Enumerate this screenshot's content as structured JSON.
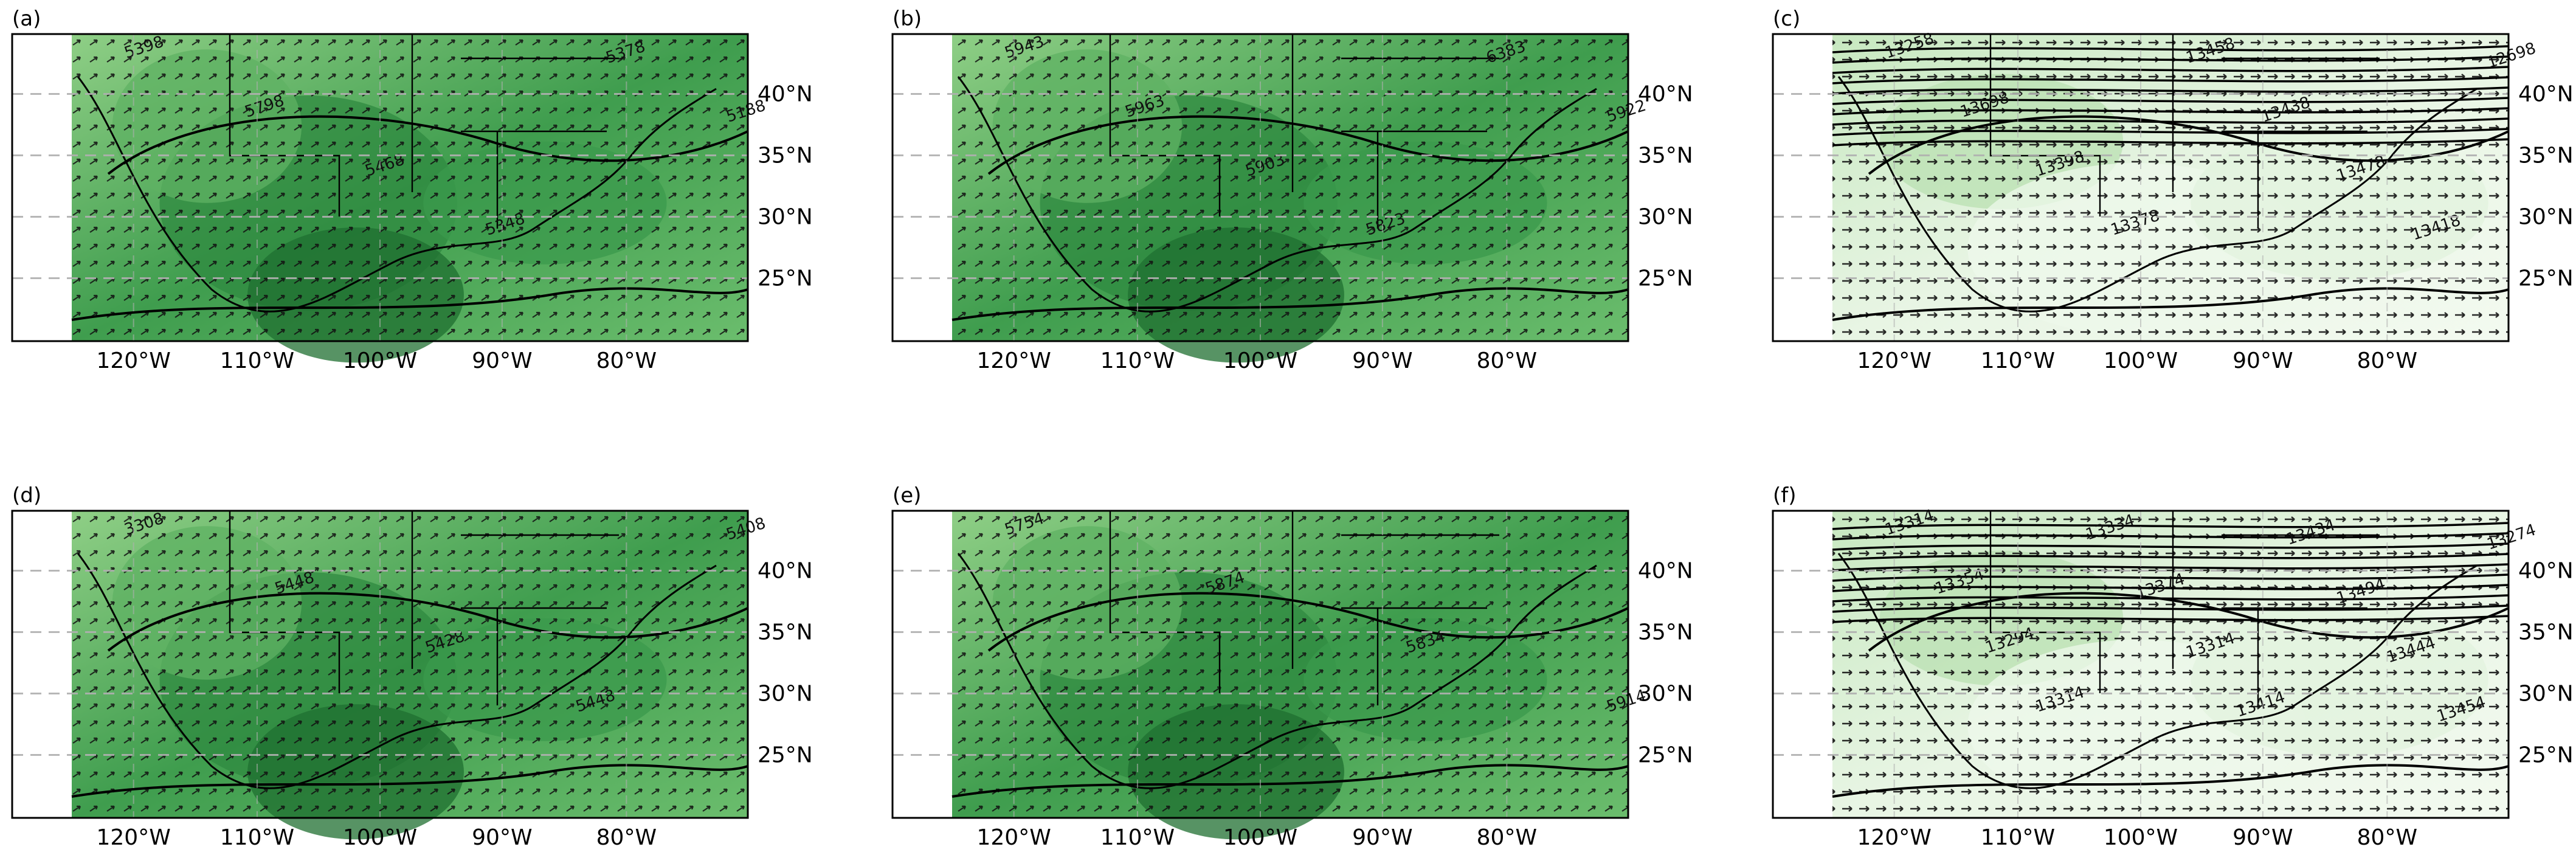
{
  "figure": {
    "panels": [
      {
        "id": "a",
        "label": "(a)",
        "theme": "dark",
        "contour_labels": [
          "5398",
          "5798",
          "5468",
          "5348",
          "5378",
          "5188"
        ]
      },
      {
        "id": "b",
        "label": "(b)",
        "theme": "dark",
        "contour_labels": [
          "5943",
          "5963",
          "5903",
          "5823",
          "6383",
          "5922"
        ]
      },
      {
        "id": "c",
        "label": "(c)",
        "theme": "light",
        "contour_labels": [
          "13258",
          "13698",
          "13398",
          "13378",
          "13458",
          "13438",
          "13478",
          "13418",
          "12698"
        ]
      },
      {
        "id": "d",
        "label": "(d)",
        "theme": "dark",
        "contour_labels": [
          "3308",
          "5448",
          "5428",
          "5448",
          "5408"
        ]
      },
      {
        "id": "e",
        "label": "(e)",
        "theme": "dark",
        "contour_labels": [
          "5754",
          "5874",
          "5834",
          "5914"
        ]
      },
      {
        "id": "f",
        "label": "(f)",
        "theme": "light",
        "contour_labels": [
          "13314",
          "13354",
          "13294",
          "13314",
          "13334",
          "13374",
          "13314",
          "13414",
          "13434",
          "13494",
          "13444",
          "13454",
          "13274"
        ]
      }
    ],
    "lat_ticks": [
      "40°N",
      "35°N",
      "30°N",
      "25°N"
    ],
    "lon_ticks": [
      "120°W",
      "110°W",
      "100°W",
      "90°W",
      "80°W"
    ],
    "colors": {
      "dark_fill": "#4aa458",
      "light_fill": "#dff0d8",
      "grid": "#b0b0b0",
      "contour": "#000000"
    }
  }
}
